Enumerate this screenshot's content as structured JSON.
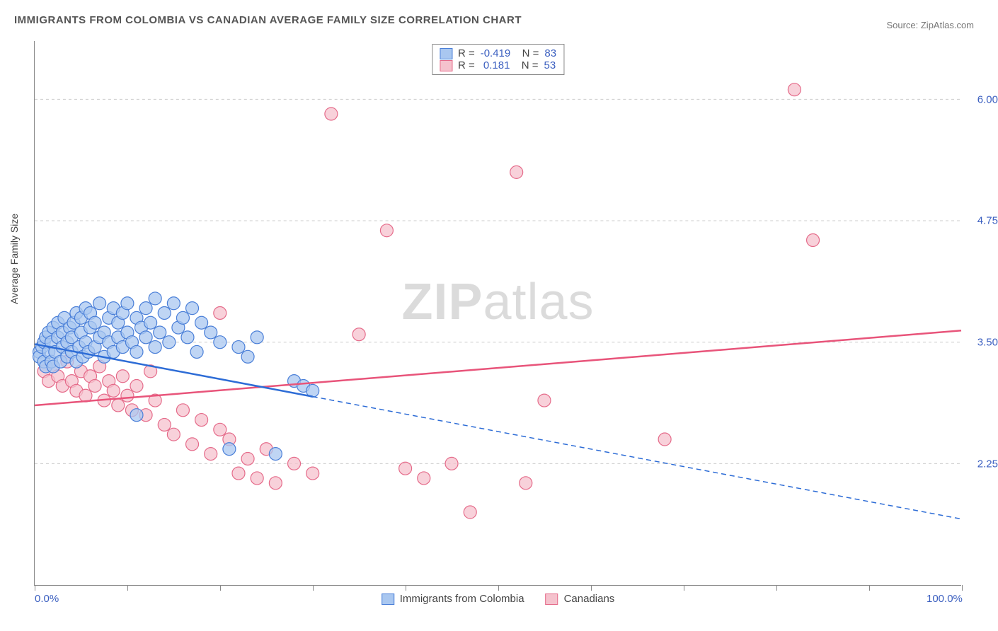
{
  "title": "IMMIGRANTS FROM COLOMBIA VS CANADIAN AVERAGE FAMILY SIZE CORRELATION CHART",
  "source": "Source: ZipAtlas.com",
  "watermark_bold": "ZIP",
  "watermark_light": "atlas",
  "y_axis_label": "Average Family Size",
  "chart": {
    "type": "scatter",
    "xlim": [
      0,
      100
    ],
    "ylim": [
      1.0,
      6.6
    ],
    "x_tick_positions": [
      0,
      10,
      20,
      30,
      40,
      50,
      60,
      70,
      80,
      90,
      100
    ],
    "x_tick_labels_shown": [
      {
        "pos": 0,
        "label": "0.0%"
      },
      {
        "pos": 100,
        "label": "100.0%"
      }
    ],
    "y_gridlines": [
      2.25,
      3.5,
      4.75,
      6.0
    ],
    "y_tick_labels": [
      "2.25",
      "3.50",
      "4.75",
      "6.00"
    ],
    "background_color": "#ffffff",
    "grid_color": "#cccccc",
    "series": [
      {
        "name": "Immigrants from Colombia",
        "marker_fill": "#a9c7f0",
        "marker_stroke": "#4a7fd8",
        "marker_radius": 9,
        "marker_opacity": 0.75,
        "line_color": "#2d6cd6",
        "line_width": 2.5,
        "R": "-0.419",
        "N": "83",
        "trend_solid": {
          "x1": 0,
          "y1": 3.48,
          "x2": 30,
          "y2": 2.94
        },
        "trend_dashed": {
          "x1": 30,
          "y1": 2.94,
          "x2": 100,
          "y2": 1.68
        },
        "points": [
          [
            0.5,
            3.4
          ],
          [
            0.5,
            3.35
          ],
          [
            0.8,
            3.45
          ],
          [
            1,
            3.3
          ],
          [
            1,
            3.5
          ],
          [
            1.2,
            3.25
          ],
          [
            1.2,
            3.55
          ],
          [
            1.5,
            3.4
          ],
          [
            1.5,
            3.6
          ],
          [
            1.8,
            3.3
          ],
          [
            1.8,
            3.5
          ],
          [
            2,
            3.25
          ],
          [
            2,
            3.65
          ],
          [
            2.2,
            3.4
          ],
          [
            2.5,
            3.55
          ],
          [
            2.5,
            3.7
          ],
          [
            2.8,
            3.3
          ],
          [
            3,
            3.45
          ],
          [
            3,
            3.6
          ],
          [
            3.2,
            3.75
          ],
          [
            3.5,
            3.35
          ],
          [
            3.5,
            3.5
          ],
          [
            3.8,
            3.65
          ],
          [
            4,
            3.4
          ],
          [
            4,
            3.55
          ],
          [
            4.2,
            3.7
          ],
          [
            4.5,
            3.3
          ],
          [
            4.5,
            3.8
          ],
          [
            4.8,
            3.45
          ],
          [
            5,
            3.6
          ],
          [
            5,
            3.75
          ],
          [
            5.2,
            3.35
          ],
          [
            5.5,
            3.5
          ],
          [
            5.5,
            3.85
          ],
          [
            5.8,
            3.4
          ],
          [
            6,
            3.65
          ],
          [
            6,
            3.8
          ],
          [
            6.5,
            3.45
          ],
          [
            6.5,
            3.7
          ],
          [
            7,
            3.55
          ],
          [
            7,
            3.9
          ],
          [
            7.5,
            3.35
          ],
          [
            7.5,
            3.6
          ],
          [
            8,
            3.75
          ],
          [
            8,
            3.5
          ],
          [
            8.5,
            3.4
          ],
          [
            8.5,
            3.85
          ],
          [
            9,
            3.55
          ],
          [
            9,
            3.7
          ],
          [
            9.5,
            3.45
          ],
          [
            9.5,
            3.8
          ],
          [
            10,
            3.6
          ],
          [
            10,
            3.9
          ],
          [
            10.5,
            3.5
          ],
          [
            11,
            3.75
          ],
          [
            11,
            3.4
          ],
          [
            11.5,
            3.65
          ],
          [
            12,
            3.85
          ],
          [
            12,
            3.55
          ],
          [
            12.5,
            3.7
          ],
          [
            13,
            3.45
          ],
          [
            13,
            3.95
          ],
          [
            13.5,
            3.6
          ],
          [
            14,
            3.8
          ],
          [
            14.5,
            3.5
          ],
          [
            15,
            3.9
          ],
          [
            15.5,
            3.65
          ],
          [
            16,
            3.75
          ],
          [
            11,
            2.75
          ],
          [
            16.5,
            3.55
          ],
          [
            17,
            3.85
          ],
          [
            17.5,
            3.4
          ],
          [
            18,
            3.7
          ],
          [
            19,
            3.6
          ],
          [
            20,
            3.5
          ],
          [
            21,
            2.4
          ],
          [
            22,
            3.45
          ],
          [
            23,
            3.35
          ],
          [
            24,
            3.55
          ],
          [
            26,
            2.35
          ],
          [
            28,
            3.1
          ],
          [
            29,
            3.05
          ],
          [
            30,
            3.0
          ]
        ]
      },
      {
        "name": "Canadians",
        "marker_fill": "#f5c2cd",
        "marker_stroke": "#e56b8a",
        "marker_radius": 9,
        "marker_opacity": 0.75,
        "line_color": "#e8547a",
        "line_width": 2.5,
        "R": "0.181",
        "N": "53",
        "trend_solid": {
          "x1": 0,
          "y1": 2.85,
          "x2": 100,
          "y2": 3.62
        },
        "points": [
          [
            1,
            3.2
          ],
          [
            1.5,
            3.1
          ],
          [
            2,
            3.25
          ],
          [
            2.5,
            3.15
          ],
          [
            3,
            3.05
          ],
          [
            3.5,
            3.3
          ],
          [
            4,
            3.1
          ],
          [
            4.5,
            3.0
          ],
          [
            5,
            3.2
          ],
          [
            5.5,
            2.95
          ],
          [
            6,
            3.15
          ],
          [
            6.5,
            3.05
          ],
          [
            7,
            3.25
          ],
          [
            7.5,
            2.9
          ],
          [
            8,
            3.1
          ],
          [
            8.5,
            3.0
          ],
          [
            9,
            2.85
          ],
          [
            9.5,
            3.15
          ],
          [
            10,
            2.95
          ],
          [
            10.5,
            2.8
          ],
          [
            11,
            3.05
          ],
          [
            12,
            2.75
          ],
          [
            12.5,
            3.2
          ],
          [
            13,
            2.9
          ],
          [
            14,
            2.65
          ],
          [
            15,
            2.55
          ],
          [
            16,
            2.8
          ],
          [
            17,
            2.45
          ],
          [
            18,
            2.7
          ],
          [
            19,
            2.35
          ],
          [
            20,
            2.6
          ],
          [
            20,
            3.8
          ],
          [
            21,
            2.5
          ],
          [
            22,
            2.15
          ],
          [
            23,
            2.3
          ],
          [
            24,
            2.1
          ],
          [
            25,
            2.4
          ],
          [
            26,
            2.05
          ],
          [
            28,
            2.25
          ],
          [
            30,
            2.15
          ],
          [
            32,
            5.85
          ],
          [
            35,
            3.58
          ],
          [
            38,
            4.65
          ],
          [
            40,
            2.2
          ],
          [
            42,
            2.1
          ],
          [
            45,
            2.25
          ],
          [
            47,
            1.75
          ],
          [
            52,
            5.25
          ],
          [
            53,
            2.05
          ],
          [
            55,
            2.9
          ],
          [
            68,
            2.5
          ],
          [
            82,
            6.1
          ],
          [
            84,
            4.55
          ]
        ]
      }
    ]
  },
  "legend_bottom": [
    {
      "fill": "#a9c7f0",
      "stroke": "#4a7fd8",
      "label": "Immigrants from Colombia"
    },
    {
      "fill": "#f5c2cd",
      "stroke": "#e56b8a",
      "label": "Canadians"
    }
  ]
}
